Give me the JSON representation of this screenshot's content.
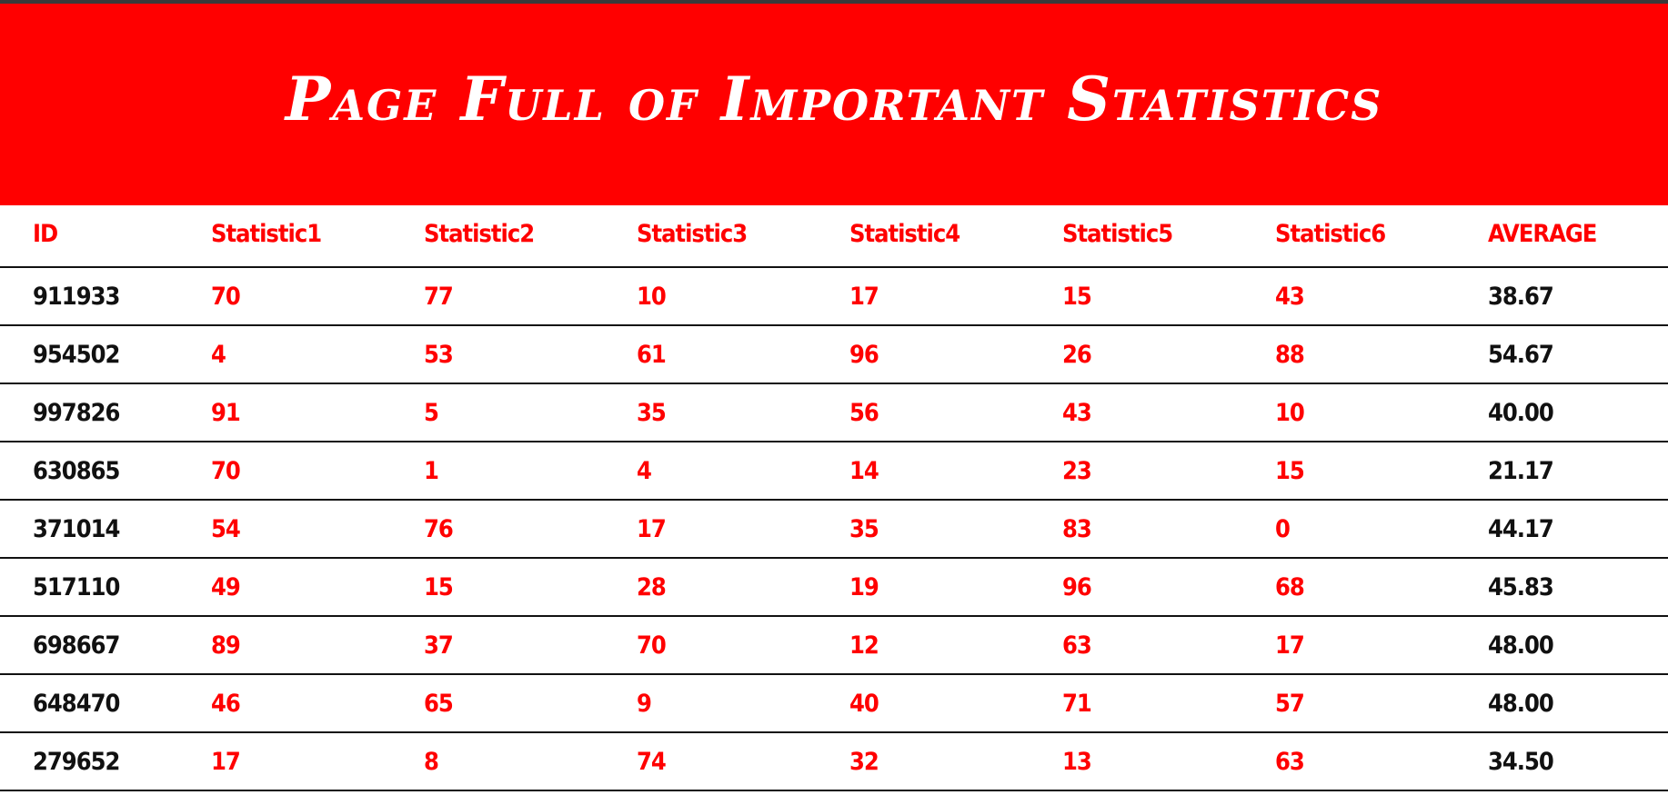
{
  "page": {
    "title": "Page Full of Important Statistics"
  },
  "colors": {
    "accent": "#ff0000",
    "text": "#111111",
    "background": "#ffffff"
  },
  "table": {
    "headers": [
      "ID",
      "Statistic1",
      "Statistic2",
      "Statistic3",
      "Statistic4",
      "Statistic5",
      "Statistic6",
      "AVERAGE"
    ],
    "rows": [
      [
        "911933",
        "70",
        "77",
        "10",
        "17",
        "15",
        "43",
        "38.67"
      ],
      [
        "954502",
        "4",
        "53",
        "61",
        "96",
        "26",
        "88",
        "54.67"
      ],
      [
        "997826",
        "91",
        "5",
        "35",
        "56",
        "43",
        "10",
        "40.00"
      ],
      [
        "630865",
        "70",
        "1",
        "4",
        "14",
        "23",
        "15",
        "21.17"
      ],
      [
        "371014",
        "54",
        "76",
        "17",
        "35",
        "83",
        "0",
        "44.17"
      ],
      [
        "517110",
        "49",
        "15",
        "28",
        "19",
        "96",
        "68",
        "45.83"
      ],
      [
        "698667",
        "89",
        "37",
        "70",
        "12",
        "63",
        "17",
        "48.00"
      ],
      [
        "648470",
        "46",
        "65",
        "9",
        "40",
        "71",
        "57",
        "48.00"
      ],
      [
        "279652",
        "17",
        "8",
        "74",
        "32",
        "13",
        "63",
        "34.50"
      ]
    ]
  }
}
